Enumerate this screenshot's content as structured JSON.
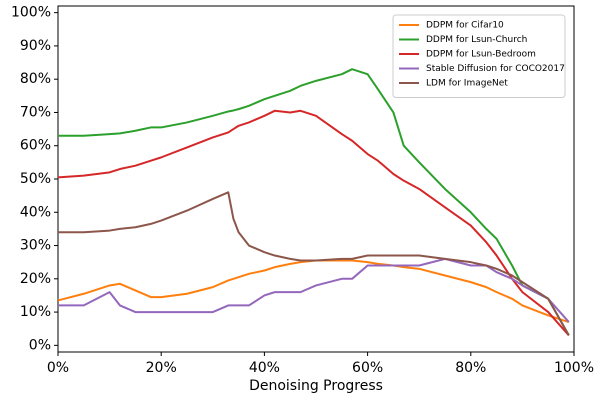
{
  "chart_data": {
    "type": "line",
    "x_label": "Denoising Progress",
    "x": [
      0,
      5,
      10,
      12,
      15,
      18,
      20,
      25,
      30,
      33,
      34,
      35,
      37,
      40,
      42,
      45,
      47,
      50,
      55,
      57,
      60,
      62,
      65,
      67,
      70,
      75,
      80,
      83,
      85,
      88,
      90,
      95,
      99
    ],
    "series": [
      {
        "name": "DDPM for Cifar10",
        "color": "#ff7f0e",
        "values": [
          13.5,
          15.5,
          18,
          18.5,
          16.5,
          14.5,
          14.5,
          15.5,
          17.5,
          19.5,
          20,
          20.5,
          21.5,
          22.5,
          23.5,
          24.5,
          25,
          25.5,
          25.5,
          25.5,
          25,
          24.5,
          24,
          23.5,
          23,
          21,
          19,
          17.5,
          16,
          14,
          12,
          9,
          7
        ]
      },
      {
        "name": "DDPM for Lsun-Church",
        "color": "#2ca02c",
        "values": [
          63,
          63,
          63.5,
          63.7,
          64.5,
          65.5,
          65.5,
          67,
          69,
          70.3,
          70.6,
          71,
          72,
          74,
          75,
          76.5,
          78,
          79.5,
          81.5,
          83,
          81.5,
          77,
          70,
          60,
          55,
          47,
          40,
          35,
          32,
          24,
          18,
          14,
          3
        ]
      },
      {
        "name": "DDPM for Lsun-Bedroom",
        "color": "#d62728",
        "values": [
          50.5,
          51,
          52,
          53,
          54,
          55.5,
          56.5,
          59.5,
          62.5,
          64,
          65,
          66,
          67,
          69,
          70.5,
          70,
          70.5,
          69,
          63.5,
          61.5,
          57.5,
          55.5,
          51.5,
          49.5,
          47,
          41.5,
          36,
          31,
          27,
          20,
          16,
          10,
          3
        ]
      },
      {
        "name": "Stable Diffusion for COCO2017",
        "color": "#9467bd",
        "values": [
          12,
          12,
          16,
          12,
          10,
          10,
          10,
          10,
          10,
          12,
          12,
          12,
          12,
          15,
          16,
          16,
          16,
          18,
          20,
          20,
          24,
          24,
          24,
          24,
          24,
          26,
          24,
          24,
          22,
          20,
          18,
          14,
          7
        ]
      },
      {
        "name": "LDM for ImageNet",
        "color": "#8c564b",
        "values": [
          34,
          34,
          34.5,
          35,
          35.5,
          36.5,
          37.5,
          40.5,
          44,
          46,
          38,
          34,
          30,
          28,
          27,
          26,
          25.5,
          25.5,
          26,
          26,
          27,
          27,
          27,
          27,
          27,
          26,
          25,
          24,
          23,
          21,
          19,
          14,
          3
        ]
      }
    ],
    "xlim": [
      0,
      100
    ],
    "xticks": [
      {
        "value": 0,
        "label": "0%"
      },
      {
        "value": 20,
        "label": "20%"
      },
      {
        "value": 40,
        "label": "40%"
      },
      {
        "value": 60,
        "label": "60%"
      },
      {
        "value": 80,
        "label": "80%"
      },
      {
        "value": 100,
        "label": "100%"
      }
    ],
    "ylim": [
      -2,
      102
    ],
    "yticks": [
      {
        "value": 0,
        "label": "0%"
      },
      {
        "value": 10,
        "label": "10%"
      },
      {
        "value": 20,
        "label": "20%"
      },
      {
        "value": 30,
        "label": "30%"
      },
      {
        "value": 40,
        "label": "40%"
      },
      {
        "value": 50,
        "label": "50%"
      },
      {
        "value": 60,
        "label": "60%"
      },
      {
        "value": 70,
        "label": "70%"
      },
      {
        "value": 80,
        "label": "80%"
      },
      {
        "value": 90,
        "label": "90%"
      },
      {
        "value": 100,
        "label": "100%"
      }
    ],
    "grid": false,
    "legend": "upper right"
  }
}
